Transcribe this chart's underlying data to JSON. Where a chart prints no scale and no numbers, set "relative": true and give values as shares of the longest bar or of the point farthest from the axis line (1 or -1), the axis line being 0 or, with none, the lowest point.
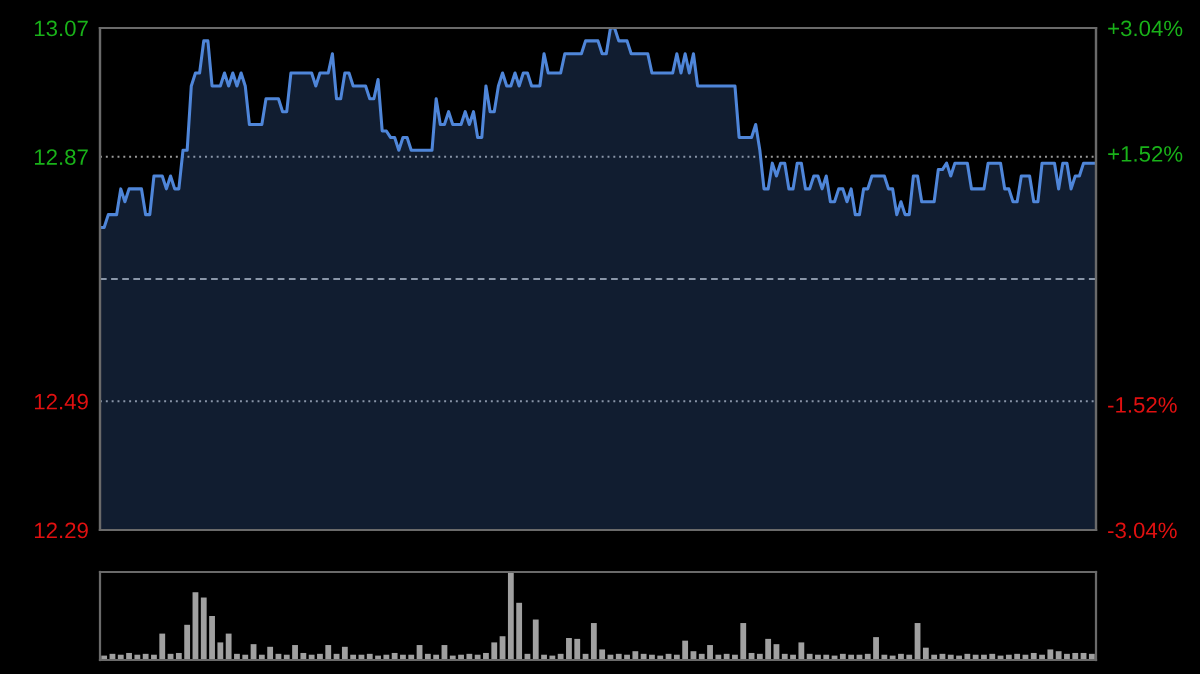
{
  "chart_data": [
    {
      "type": "area",
      "categories": [
        null,
        null,
        null,
        null,
        null,
        null,
        null,
        null,
        null,
        null,
        null,
        null,
        null,
        null,
        null,
        null,
        null,
        null,
        null,
        null,
        null,
        null,
        null,
        null,
        null,
        null,
        null,
        null,
        null,
        null,
        null,
        null,
        null,
        null,
        null,
        null,
        null,
        null,
        null,
        null,
        null,
        null,
        null,
        null,
        null,
        null,
        null,
        null,
        null,
        null,
        null,
        null,
        null,
        null,
        null,
        null,
        null,
        null,
        null,
        null,
        null,
        null,
        null,
        null,
        null,
        null,
        null,
        null,
        null,
        null,
        null,
        null,
        null,
        null,
        null,
        null,
        null,
        null,
        null,
        null,
        null,
        null,
        null,
        null,
        null,
        null,
        null,
        null,
        null,
        null,
        null,
        null,
        null,
        null,
        null,
        null,
        null,
        null,
        null,
        null,
        null,
        null,
        null,
        null,
        null,
        null,
        null,
        null,
        null,
        null,
        null,
        null,
        null,
        null,
        null,
        null,
        null,
        null,
        null,
        null,
        null,
        null,
        null,
        null,
        null,
        null,
        null,
        null,
        null,
        null,
        null,
        null,
        null,
        null,
        null,
        null,
        null,
        null,
        null,
        null,
        null,
        null,
        null,
        null,
        null,
        null,
        null,
        null,
        null,
        null,
        null,
        null,
        null,
        null,
        null,
        null,
        null,
        null,
        null,
        null,
        null,
        null,
        null,
        null,
        null,
        null,
        null,
        null,
        null,
        null,
        null,
        null,
        null,
        null,
        null,
        null,
        null,
        null,
        null,
        null,
        null,
        null,
        null,
        null,
        null,
        null,
        null,
        null,
        null,
        null,
        null,
        null,
        null,
        null,
        null,
        null,
        null,
        null,
        null,
        null,
        null,
        null,
        null,
        null,
        null,
        null,
        null,
        null,
        null,
        null,
        null,
        null,
        null,
        null,
        null,
        null,
        null,
        null,
        null,
        null,
        null,
        null,
        null,
        null,
        null,
        null,
        null,
        null,
        null,
        null,
        null,
        null,
        null,
        null,
        null,
        null,
        null,
        null,
        null,
        null,
        null
      ],
      "ylim": [
        12.29,
        13.07
      ],
      "yticks": [
        12.29,
        12.49,
        12.87,
        13.07
      ],
      "y2lim": [
        -3.04,
        3.04
      ],
      "y2ticks": [
        {
          "value": -3.04,
          "label": "-3.04%"
        },
        {
          "value": -1.52,
          "label": "-1.52%"
        },
        {
          "value": 1.52,
          "label": "+1.52%"
        },
        {
          "value": 3.04,
          "label": "+3.04%"
        }
      ],
      "grid": "y",
      "ref_lines": [
        {
          "axis": "y2",
          "value": 0,
          "color": "#8a96a8",
          "line_style": "dashed"
        }
      ],
      "series": [
        {
          "color": "#4f86d9",
          "values": [
            12.76,
            12.76,
            12.78,
            12.78,
            12.78,
            12.82,
            12.8,
            12.82,
            12.82,
            12.82,
            12.82,
            12.78,
            12.78,
            12.84,
            12.84,
            12.84,
            12.82,
            12.84,
            12.82,
            12.82,
            12.88,
            12.88,
            12.98,
            13.0,
            13.0,
            13.05,
            13.05,
            12.98,
            12.98,
            12.98,
            13.0,
            12.98,
            13.0,
            12.98,
            13.0,
            12.98,
            12.92,
            12.92,
            12.92,
            12.92,
            12.96,
            12.96,
            12.96,
            12.96,
            12.94,
            12.94,
            13.0,
            13.0,
            13.0,
            13.0,
            13.0,
            13.0,
            12.98,
            13.0,
            13.0,
            13.0,
            13.03,
            12.96,
            12.96,
            13.0,
            13.0,
            12.98,
            12.98,
            12.98,
            12.98,
            12.96,
            12.96,
            12.99,
            12.91,
            12.91,
            12.9,
            12.9,
            12.88,
            12.9,
            12.9,
            12.88,
            12.88,
            12.88,
            12.88,
            12.88,
            12.88,
            12.96,
            12.92,
            12.92,
            12.94,
            12.92,
            12.92,
            12.92,
            12.94,
            12.92,
            12.94,
            12.9,
            12.9,
            12.98,
            12.94,
            12.94,
            12.98,
            13.0,
            12.98,
            12.98,
            13.0,
            12.98,
            13.0,
            13.0,
            12.98,
            12.98,
            12.98,
            13.03,
            13.0,
            13.0,
            13.0,
            13.0,
            13.03,
            13.03,
            13.03,
            13.03,
            13.03,
            13.05,
            13.05,
            13.05,
            13.05,
            13.03,
            13.03,
            13.07,
            13.07,
            13.05,
            13.05,
            13.05,
            13.03,
            13.03,
            13.03,
            13.03,
            13.03,
            13.0,
            13.0,
            13.0,
            13.0,
            13.0,
            13.0,
            13.03,
            13.0,
            13.03,
            13.0,
            13.03,
            12.98,
            12.98,
            12.98,
            12.98,
            12.98,
            12.98,
            12.98,
            12.98,
            12.98,
            12.98,
            12.9,
            12.9,
            12.9,
            12.9,
            12.92,
            12.88,
            12.82,
            12.82,
            12.86,
            12.84,
            12.86,
            12.86,
            12.82,
            12.82,
            12.86,
            12.86,
            12.82,
            12.82,
            12.84,
            12.84,
            12.82,
            12.84,
            12.8,
            12.8,
            12.82,
            12.82,
            12.8,
            12.82,
            12.78,
            12.78,
            12.82,
            12.82,
            12.84,
            12.84,
            12.84,
            12.84,
            12.82,
            12.82,
            12.78,
            12.8,
            12.78,
            12.78,
            12.84,
            12.84,
            12.8,
            12.8,
            12.8,
            12.8,
            12.85,
            12.85,
            12.86,
            12.84,
            12.86,
            12.86,
            12.86,
            12.86,
            12.82,
            12.82,
            12.82,
            12.82,
            12.86,
            12.86,
            12.86,
            12.86,
            12.82,
            12.82,
            12.8,
            12.8,
            12.84,
            12.84,
            12.84,
            12.8,
            12.8,
            12.86,
            12.86,
            12.86,
            12.86,
            12.82,
            12.86,
            12.86,
            12.82,
            12.84,
            12.84,
            12.86,
            12.86,
            12.86,
            12.86
          ]
        }
      ]
    },
    {
      "type": "bar",
      "relative": true,
      "color": "#a0a0a0",
      "categories": [
        null,
        null,
        null,
        null,
        null,
        null,
        null,
        null,
        null,
        null,
        null,
        null,
        null,
        null,
        null,
        null,
        null,
        null,
        null,
        null,
        null,
        null,
        null,
        null,
        null,
        null,
        null,
        null,
        null,
        null,
        null,
        null,
        null,
        null,
        null,
        null,
        null,
        null,
        null,
        null,
        null,
        null,
        null,
        null,
        null,
        null,
        null,
        null,
        null,
        null,
        null,
        null,
        null,
        null,
        null,
        null,
        null,
        null,
        null,
        null,
        null,
        null,
        null,
        null,
        null,
        null,
        null,
        null,
        null,
        null,
        null,
        null,
        null,
        null,
        null,
        null,
        null,
        null,
        null,
        null,
        null,
        null,
        null,
        null,
        null,
        null,
        null,
        null,
        null,
        null,
        null,
        null,
        null,
        null,
        null,
        null,
        null,
        null,
        null,
        null,
        null,
        null,
        null,
        null,
        null,
        null,
        null,
        null,
        null,
        null,
        null,
        null,
        null,
        null,
        null,
        null,
        null,
        null,
        null,
        null
      ],
      "values": [
        0.05,
        0.07,
        0.06,
        0.08,
        0.06,
        0.07,
        0.06,
        0.3,
        0.07,
        0.08,
        0.4,
        0.77,
        0.71,
        0.5,
        0.2,
        0.3,
        0.07,
        0.06,
        0.18,
        0.06,
        0.15,
        0.07,
        0.06,
        0.17,
        0.08,
        0.06,
        0.07,
        0.17,
        0.07,
        0.15,
        0.06,
        0.06,
        0.07,
        0.05,
        0.06,
        0.08,
        0.06,
        0.06,
        0.17,
        0.07,
        0.06,
        0.17,
        0.05,
        0.06,
        0.07,
        0.06,
        0.08,
        0.2,
        0.27,
        1,
        0.65,
        0.07,
        0.46,
        0.06,
        0.05,
        0.07,
        0.25,
        0.24,
        0.07,
        0.42,
        0.12,
        0.06,
        0.07,
        0.06,
        0.1,
        0.07,
        0.06,
        0.05,
        0.07,
        0.06,
        0.22,
        0.1,
        0.07,
        0.17,
        0.06,
        0.07,
        0.06,
        0.42,
        0.08,
        0.07,
        0.24,
        0.18,
        0.07,
        0.06,
        0.2,
        0.07,
        0.06,
        0.06,
        0.05,
        0.07,
        0.06,
        0.06,
        0.07,
        0.26,
        0.06,
        0.05,
        0.07,
        0.06,
        0.42,
        0.14,
        0.06,
        0.07,
        0.06,
        0.05,
        0.07,
        0.06,
        0.06,
        0.07,
        0.05,
        0.06,
        0.07,
        0.06,
        0.08,
        0.06,
        0.12,
        0.1,
        0.07,
        0.08,
        0.08,
        0.07
      ]
    }
  ]
}
